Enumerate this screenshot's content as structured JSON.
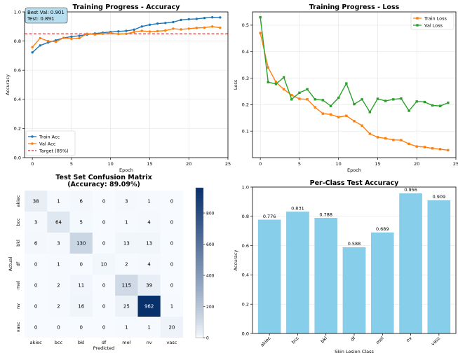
{
  "chart_data": [
    {
      "type": "line",
      "title": "Training Progress - Accuracy",
      "xlabel": "Epoch",
      "ylabel": "Accuracy",
      "xlim": [
        -1,
        25
      ],
      "ylim": [
        0.0,
        1.0
      ],
      "xticks": [
        0,
        5,
        10,
        15,
        20,
        25
      ],
      "yticks": [
        0.0,
        0.2,
        0.4,
        0.6,
        0.8,
        1.0
      ],
      "grid": true,
      "x": [
        0,
        1,
        2,
        3,
        4,
        5,
        6,
        7,
        8,
        9,
        10,
        11,
        12,
        13,
        14,
        15,
        16,
        17,
        18,
        19,
        20,
        21,
        22,
        23,
        24
      ],
      "series": [
        {
          "name": "Train Acc",
          "color": "#1f77b4",
          "values": [
            0.722,
            0.77,
            0.79,
            0.805,
            0.822,
            0.83,
            0.836,
            0.845,
            0.852,
            0.857,
            0.862,
            0.866,
            0.87,
            0.878,
            0.9,
            0.912,
            0.92,
            0.924,
            0.93,
            0.945,
            0.95,
            0.952,
            0.958,
            0.963,
            0.962
          ]
        },
        {
          "name": "Val Acc",
          "color": "#ff7f0e",
          "values": [
            0.758,
            0.82,
            0.8,
            0.795,
            0.822,
            0.815,
            0.82,
            0.85,
            0.845,
            0.85,
            0.855,
            0.848,
            0.85,
            0.862,
            0.87,
            0.865,
            0.868,
            0.872,
            0.885,
            0.88,
            0.885,
            0.89,
            0.892,
            0.9,
            0.891
          ]
        }
      ],
      "reference_line": {
        "name": "Target (85%)",
        "value": 0.85,
        "color": "#d62728"
      },
      "legend": [
        "Train Acc",
        "Val Acc",
        "Target (85%)"
      ],
      "legend_position": "bottom-left",
      "annotation": {
        "line1": "Best Val: 0.901",
        "line2": "Test: 0.891"
      }
    },
    {
      "type": "line",
      "title": "Training Progress - Loss",
      "xlabel": "Epoch",
      "ylabel": "Loss",
      "xlim": [
        -1,
        25
      ],
      "ylim": [
        0.0,
        0.55
      ],
      "xticks": [
        0,
        5,
        10,
        15,
        20,
        25
      ],
      "yticks": [
        0.1,
        0.2,
        0.3,
        0.4,
        0.5
      ],
      "grid": true,
      "x": [
        0,
        1,
        2,
        3,
        4,
        5,
        6,
        7,
        8,
        9,
        10,
        11,
        12,
        13,
        14,
        15,
        16,
        17,
        18,
        19,
        20,
        21,
        22,
        23,
        24
      ],
      "series": [
        {
          "name": "Train Loss",
          "color": "#ff7f0e",
          "values": [
            0.47,
            0.34,
            0.285,
            0.258,
            0.236,
            0.222,
            0.22,
            0.19,
            0.166,
            0.163,
            0.153,
            0.158,
            0.138,
            0.121,
            0.09,
            0.077,
            0.073,
            0.067,
            0.066,
            0.052,
            0.042,
            0.04,
            0.035,
            0.032,
            0.028
          ]
        },
        {
          "name": "Val Loss",
          "color": "#2ca02c",
          "values": [
            0.53,
            0.285,
            0.278,
            0.303,
            0.22,
            0.245,
            0.258,
            0.22,
            0.217,
            0.195,
            0.226,
            0.28,
            0.202,
            0.22,
            0.172,
            0.222,
            0.214,
            0.22,
            0.223,
            0.177,
            0.212,
            0.21,
            0.197,
            0.195,
            0.207
          ]
        }
      ],
      "legend": [
        "Train Loss",
        "Val Loss"
      ],
      "legend_position": "top-right"
    },
    {
      "type": "heatmap",
      "title": "Test Set Confusion Matrix",
      "subtitle": "(Accuracy: 89.09%)",
      "xlabel": "Predicted",
      "ylabel": "Actual",
      "labels": [
        "akiec",
        "bcc",
        "bkl",
        "df",
        "mel",
        "nv",
        "vasc"
      ],
      "matrix": [
        [
          38,
          1,
          6,
          0,
          3,
          1,
          0
        ],
        [
          3,
          64,
          5,
          0,
          1,
          4,
          0
        ],
        [
          6,
          3,
          130,
          0,
          13,
          13,
          0
        ],
        [
          0,
          1,
          0,
          10,
          2,
          4,
          0
        ],
        [
          0,
          2,
          11,
          0,
          115,
          39,
          0
        ],
        [
          0,
          2,
          16,
          0,
          25,
          962,
          1
        ],
        [
          0,
          0,
          0,
          0,
          1,
          1,
          20
        ]
      ],
      "colorbar_range": [
        0,
        962
      ],
      "colorbar_ticks": [
        0,
        200,
        400,
        600,
        800
      ]
    },
    {
      "type": "bar",
      "title": "Per-Class Test Accuracy",
      "xlabel": "Skin Lesion Class",
      "ylabel": "Accuracy",
      "ylim": [
        0.0,
        1.0
      ],
      "yticks": [
        0.0,
        0.2,
        0.4,
        0.6,
        0.8,
        1.0
      ],
      "categories": [
        "akiec",
        "bcc",
        "bkl",
        "df",
        "mel",
        "nv",
        "vasc"
      ],
      "values": [
        0.776,
        0.831,
        0.788,
        0.588,
        0.689,
        0.956,
        0.909
      ],
      "value_labels": [
        "0.776",
        "0.831",
        "0.788",
        "0.588",
        "0.689",
        "0.956",
        "0.909"
      ],
      "bar_color": "#87ceeb",
      "grid": true
    }
  ]
}
